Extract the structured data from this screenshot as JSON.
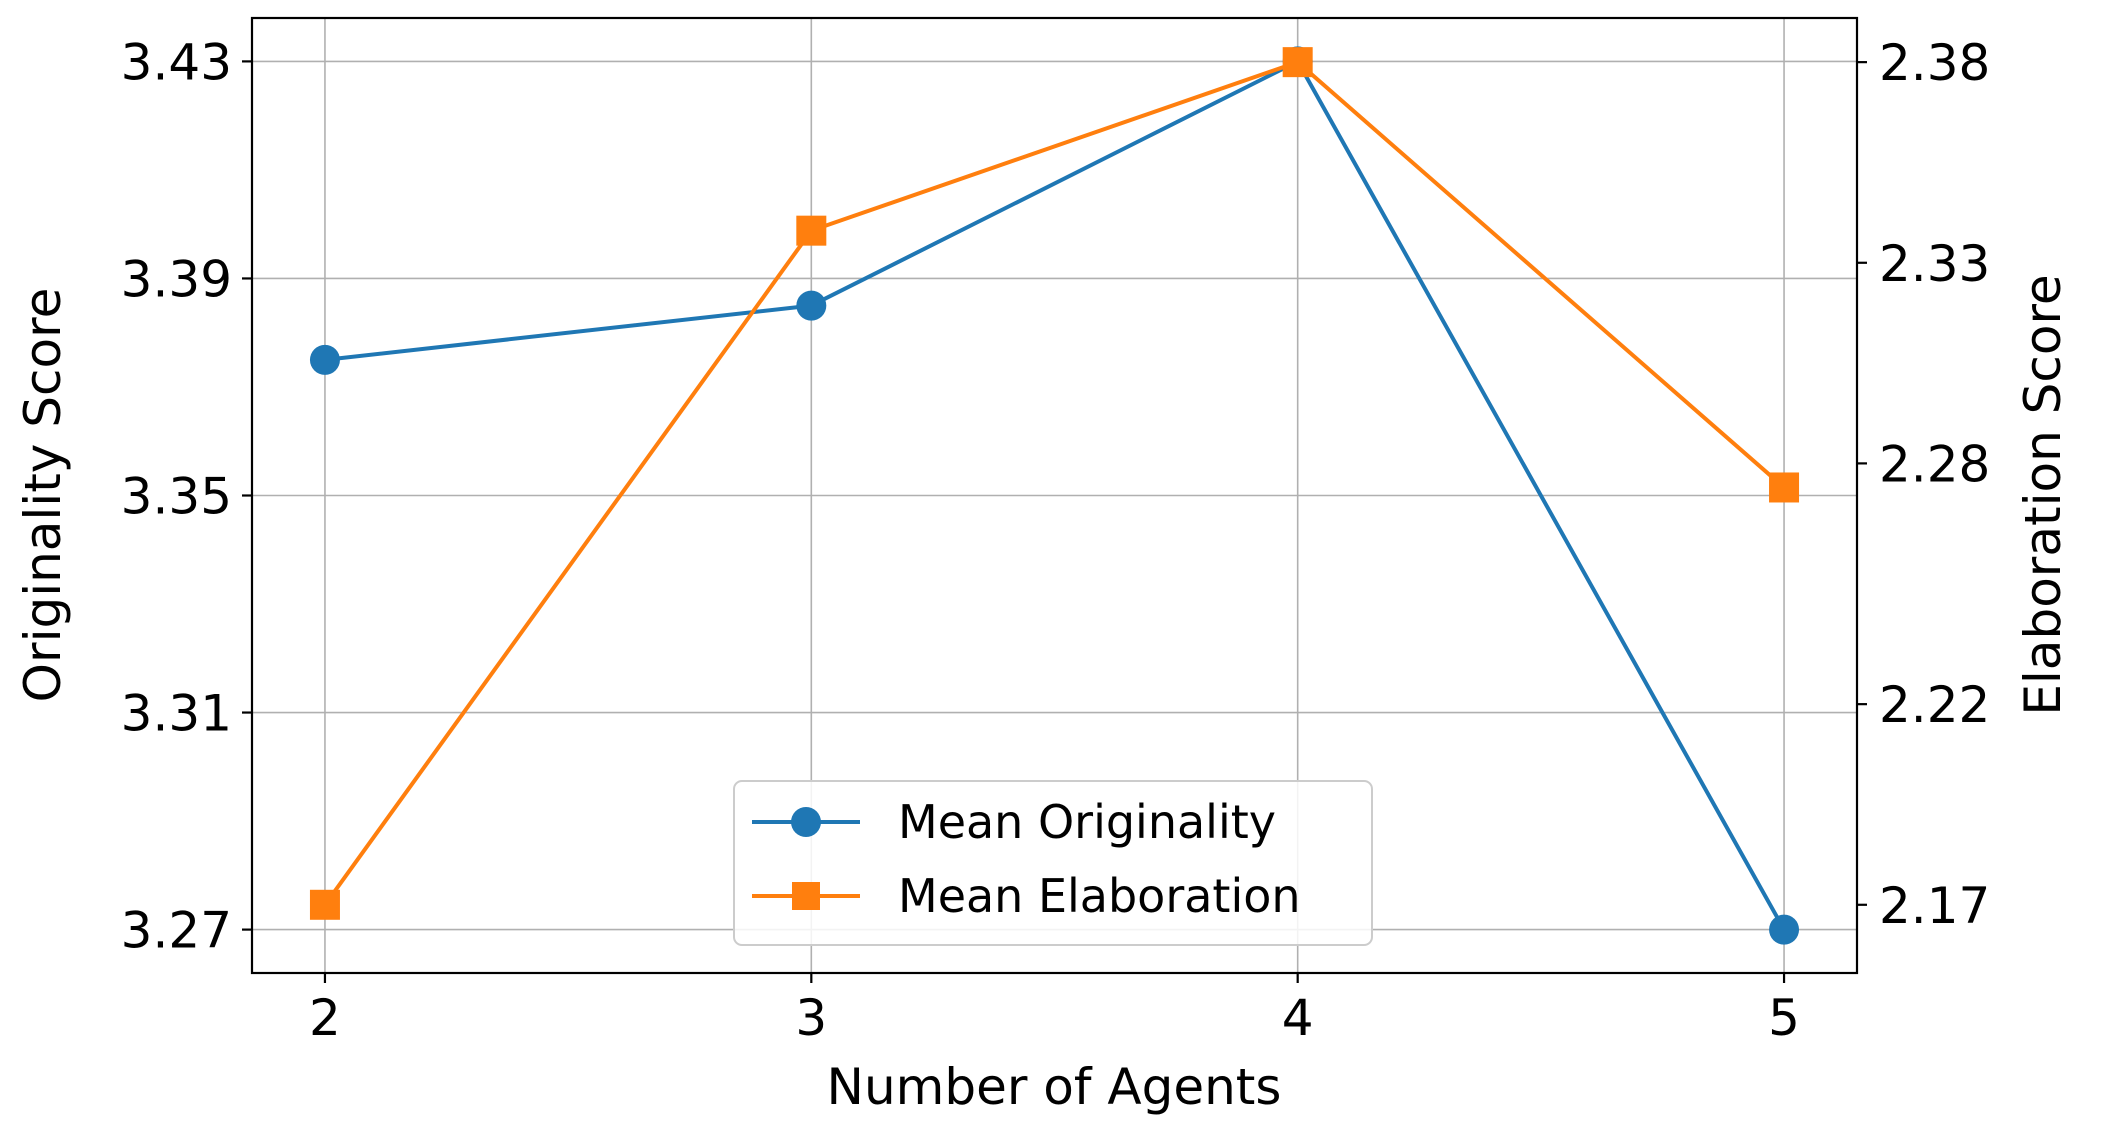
{
  "chart_data": {
    "type": "line",
    "x": [
      2,
      3,
      4,
      5
    ],
    "xlabel": "Number of Agents",
    "ylabel_left": "Originality Score",
    "ylabel_right": "Elaboration Score",
    "x_ticks": [
      "2",
      "3",
      "4",
      "5"
    ],
    "xlim": [
      1.85,
      5.15
    ],
    "ylim_left": [
      3.262,
      3.438
    ],
    "ylim_right": [
      2.153,
      2.391
    ],
    "y_ticks_left": [
      "3.27",
      "3.31",
      "3.35",
      "3.39",
      "3.43"
    ],
    "y_ticks_right": [
      "2.17",
      "2.22",
      "2.28",
      "2.33",
      "2.38"
    ],
    "grid": true,
    "legend_position": "lower-center",
    "series": [
      {
        "name": "Mean Originality",
        "axis": "left",
        "marker": "circle",
        "color": "#1f77b4",
        "values": [
          3.375,
          3.385,
          3.43,
          3.27
        ]
      },
      {
        "name": "Mean Elaboration",
        "axis": "right",
        "marker": "square",
        "color": "#ff7f0e",
        "values": [
          2.17,
          2.338,
          2.38,
          2.274
        ]
      }
    ]
  }
}
